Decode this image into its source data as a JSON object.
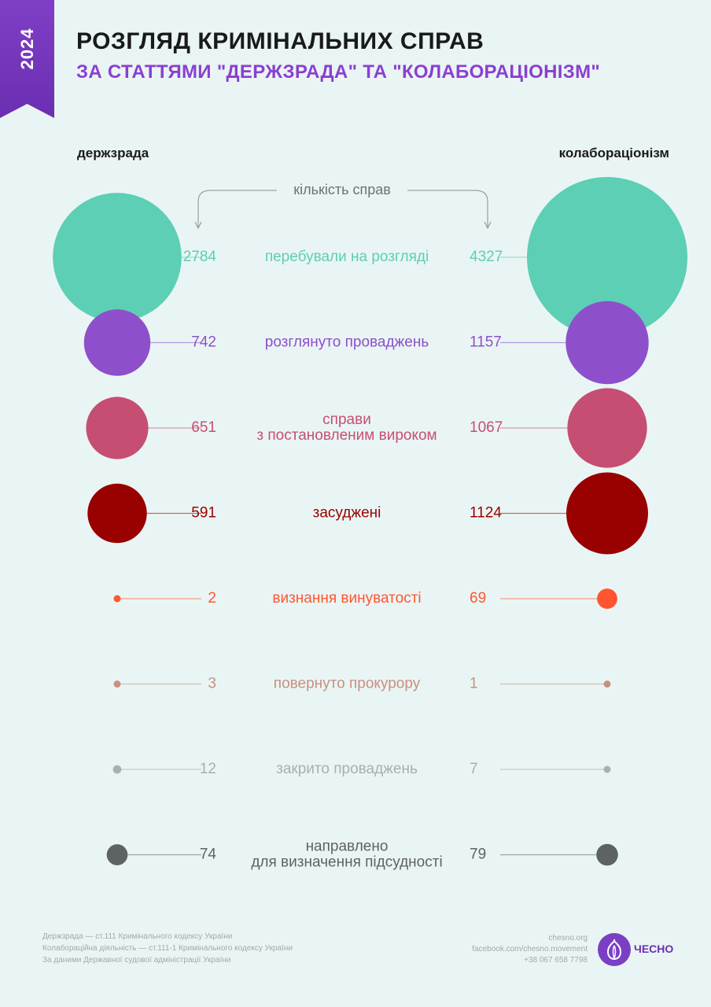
{
  "ribbon": {
    "year": "2024"
  },
  "header": {
    "title": "РОЗГЛЯД КРИМІНАЛЬНИХ СПРАВ",
    "subtitle": "ЗА СТАТТЯМИ \"ДЕРЖЗРАДА\" ТА \"КОЛАБОРАЦІОНІЗМ\""
  },
  "chart_data": {
    "type": "bubble",
    "axis_note": "кількість справ",
    "groups": [
      "держзрада",
      "колабораціонізм"
    ],
    "rows": [
      {
        "label": [
          "перебували на розгляді"
        ],
        "left": 2784,
        "right": 4327,
        "color": "#5ccfb5"
      },
      {
        "label": [
          "розглянуто проваджень"
        ],
        "left": 742,
        "right": 1157,
        "color": "#8e4fcb"
      },
      {
        "label": [
          "справи",
          "з постановленим вироком"
        ],
        "left": 651,
        "right": 1067,
        "color": "#c74e73"
      },
      {
        "label": [
          "засуджені"
        ],
        "left": 591,
        "right": 1124,
        "color": "#990000"
      },
      {
        "label": [
          "визнання винуватості"
        ],
        "left": 2,
        "right": 69,
        "color": "#ff5530"
      },
      {
        "label": [
          "повернуто прокурору"
        ],
        "left": 3,
        "right": 1,
        "color": "#c8907e"
      },
      {
        "label": [
          "закрито проваджень"
        ],
        "left": 12,
        "right": 7,
        "color": "#a9b0ad"
      },
      {
        "label": [
          "направлено",
          "для визначення підсудності"
        ],
        "left": 74,
        "right": 79,
        "color": "#5f6263"
      }
    ]
  },
  "footer": {
    "notes": [
      "Держзрада — ст.111 Кримінального кодексу України",
      "Колабораційна діяльність — ст.111-1 Кримінального кодексу України",
      "За даними Державної судової адміністрації України"
    ],
    "contacts": [
      "chesno.org",
      "facebook.com/chesno.movement",
      "+38 067 658 7798"
    ],
    "logo_text": "ЧЕСНО"
  },
  "logo_icon": "garlic-icon"
}
